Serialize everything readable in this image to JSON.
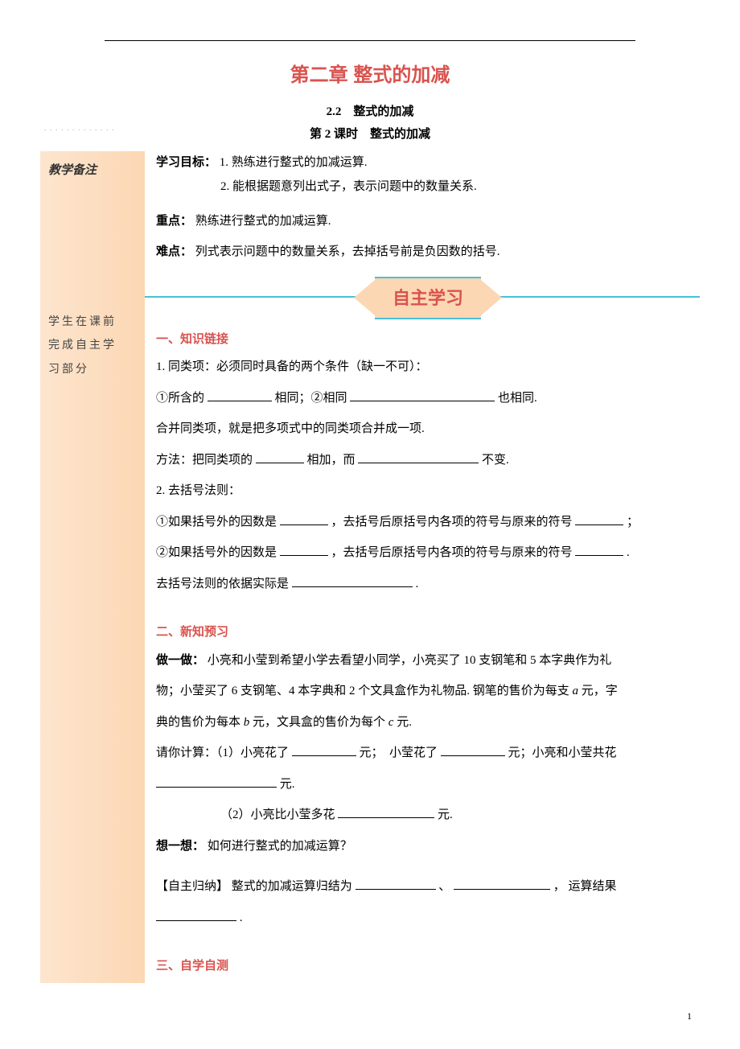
{
  "chapter_title": "第二章  整式的加减",
  "section_num": "2.2　整式的加减",
  "lesson": "第 2 课时　整式的加减",
  "goal_label": "学习目标：",
  "goal_1": "1. 熟练进行整式的加减运算.",
  "goal_2": "2. 能根据题意列出式子，表示问题中的数量关系.",
  "focus_label": "重点：",
  "focus_text": "熟练进行整式的加减运算.",
  "difficult_label": "难点：",
  "difficult_text": "列式表示问题中的数量关系，去掉括号前是负因数的括号.",
  "sidebar_title": "教学备注",
  "sidebar_note_1": "学生在课前",
  "sidebar_note_2": "完成自主学",
  "sidebar_note_3": "习部分",
  "banner": "自主学习",
  "sec1": "一、知识链接",
  "s1_1": "1. 同类项：必须同时具备的两个条件（缺一不可）：",
  "s1_2a": "①所含的",
  "s1_2b": "相同；②相同",
  "s1_2c": "也相同.",
  "s1_3": "合并同类项，就是把多项式中的同类项合并成一项.",
  "s1_4a": "方法：把同类项的",
  "s1_4b": "相加，而",
  "s1_4c": "不变.",
  "s1_5": "2. 去括号法则：",
  "s1_6a": "①如果括号外的因数是",
  "s1_6b": "，去括号后原括号内各项的符号与原来的符号",
  "s1_6c": "；",
  "s1_7a": "②如果括号外的因数是",
  "s1_7b": "，去括号后原括号内各项的符号与原来的符号",
  "s1_7c": ".",
  "s1_8a": "去括号法则的依据实际是",
  "s1_8b": ".",
  "sec2": "二、新知预习",
  "s2_1_label": "做一做：",
  "s2_1a": "小亮和小莹到希望小学去看望小同学，小亮买了 10 支钢笔和 5 本字典作为礼",
  "s2_1b": "物；小莹买了 6 支钢笔、4 本字典和 2 个文具盒作为礼物品. 钢笔的售价为每支 ",
  "s2_1c": "元，字",
  "s2_1d": "典的售价为每本 ",
  "s2_1e": " 元，文具盒的售价为每个 ",
  "s2_1f": " 元.",
  "s2_2a": "请你计算：（1）小亮花了",
  "s2_2b": "元；　小莹花了",
  "s2_2c": "元；小亮和小莹共花",
  "s2_2d": "元.",
  "s2_3a": "（2）小亮比小莹多花",
  "s2_3b": "元.",
  "s2_4_label": "想一想：",
  "s2_4": "如何进行整式的加减运算？",
  "s2_5_label": "【自主归纳】",
  "s2_5a": "整式的加减运算归结为",
  "s2_5b": "、",
  "s2_5c": "，  运算结果",
  "s2_5d": ".",
  "sec3": "三、自学自测",
  "var_a": "a",
  "var_b": "b",
  "var_c": "c",
  "page_num": "1"
}
